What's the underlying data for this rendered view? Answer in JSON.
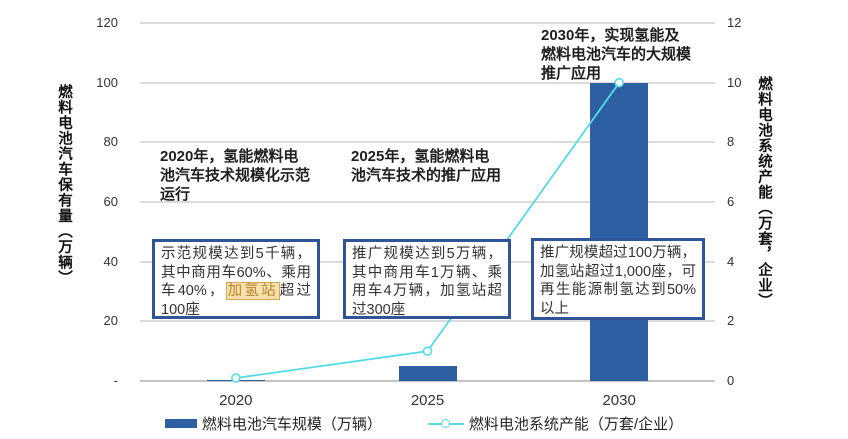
{
  "chart_data": {
    "type": "bar+line combo",
    "categories": [
      "2020",
      "2025",
      "2030"
    ],
    "series": [
      {
        "name": "燃料电池汽车规模（万辆）",
        "type": "bar",
        "axis": "left",
        "values": [
          0.5,
          5,
          100
        ],
        "color": "#2E5FA3"
      },
      {
        "name": "燃料电池系统产能（万套/企业）",
        "type": "line",
        "axis": "right",
        "values": [
          0.1,
          1,
          10
        ],
        "color": "#53DCE6"
      }
    ],
    "left_axis": {
      "label": "燃料电池汽车保有量（万辆）",
      "range": [
        0,
        120
      ],
      "ticks": [
        {
          "label": "120",
          "value": 120
        },
        {
          "label": "100",
          "value": 100
        },
        {
          "label": "80",
          "value": 80
        },
        {
          "label": "60",
          "value": 60
        },
        {
          "label": "40",
          "value": 40
        },
        {
          "label": "20",
          "value": 20
        },
        {
          "label": "-",
          "value": 0
        }
      ]
    },
    "right_axis": {
      "label": "燃料电池系统产能（万套，企业）",
      "range": [
        0,
        12
      ],
      "ticks": [
        {
          "label": "12",
          "value": 12
        },
        {
          "label": "10",
          "value": 10
        },
        {
          "label": "8",
          "value": 8
        },
        {
          "label": "6",
          "value": 6
        },
        {
          "label": "4",
          "value": 4
        },
        {
          "label": "2",
          "value": 2
        },
        {
          "label": "0",
          "value": 0
        }
      ]
    },
    "grid": true,
    "legend_position": "bottom"
  },
  "annotations": {
    "a2020": {
      "title": "2020年，氢能燃料电池汽车技术规模化示范运行"
    },
    "a2025": {
      "title": "2025年，氢能燃料电池汽车技术的推广应用"
    },
    "a2030": {
      "title": "2030年，实现氢能及燃料电池汽车的大规模推广应用"
    }
  },
  "boxes": {
    "box2020": {
      "pre": "示范规模达到5千辆，其中商用车60%、乘用车40%，",
      "highlight": "加氢站",
      "post": "超过100座"
    },
    "box2025": {
      "text": "推广规模达到5万辆，其中商用车1万辆、乘用车4万辆，加氢站超过300座"
    },
    "box2030": {
      "text": "推广规模超过100万辆，加氢站超过1,000座，可再生能源制氢达到50%以上"
    }
  },
  "legend": {
    "items": [
      {
        "label": "燃料电池汽车规模（万辆）",
        "marker": "bar"
      },
      {
        "label": "燃料电池系统产能（万套/企业）",
        "marker": "line"
      }
    ]
  },
  "colors": {
    "bar_blue": "#2E5FA3",
    "line_cyan": "#53DCE6",
    "box_border": "#2F5597",
    "highlight_bg": "#F7DFAE",
    "highlight_text": "#B8862B"
  }
}
